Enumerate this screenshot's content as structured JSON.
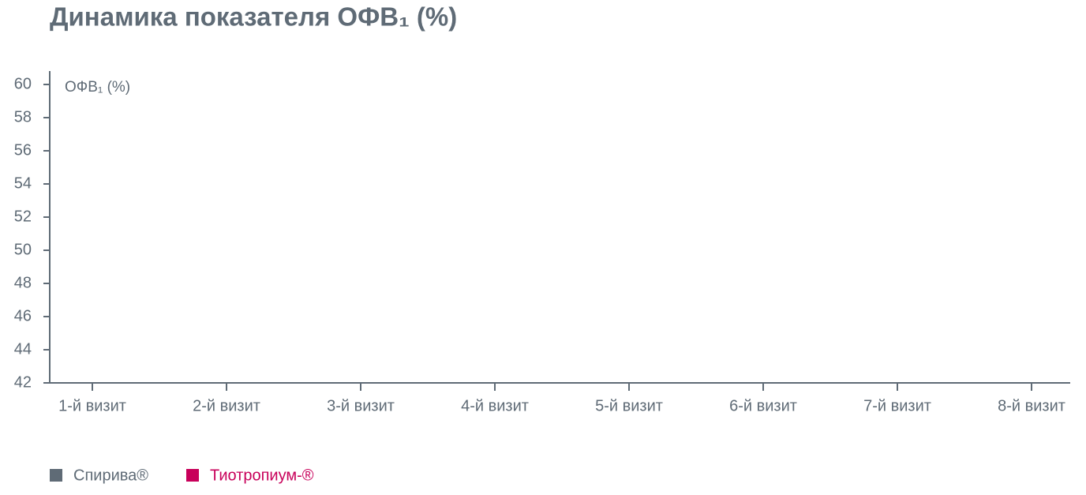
{
  "chart_data": {
    "type": "line",
    "title": "Динамика показателя ОФВ₁ (%)",
    "y_label": "ОФВ₁ (%)",
    "categories": [
      "1-й визит",
      "2-й визит",
      "3-й визит",
      "4-й визит",
      "5-й визит",
      "6-й визит",
      "7-й визит",
      "8-й визит"
    ],
    "series": [
      {
        "name": "Спирива®",
        "color": "#5f6b76",
        "values": [
          null,
          null,
          null,
          null,
          null,
          null,
          null,
          null
        ]
      },
      {
        "name": "Тиотропиум-®",
        "color": "#c8005a",
        "values": [
          null,
          null,
          null,
          null,
          null,
          null,
          null,
          null
        ]
      }
    ],
    "ylim": [
      42,
      60
    ],
    "yticks": [
      42,
      44,
      46,
      48,
      50,
      52,
      54,
      56,
      58,
      60
    ],
    "grid": false,
    "legend": "bottom"
  }
}
